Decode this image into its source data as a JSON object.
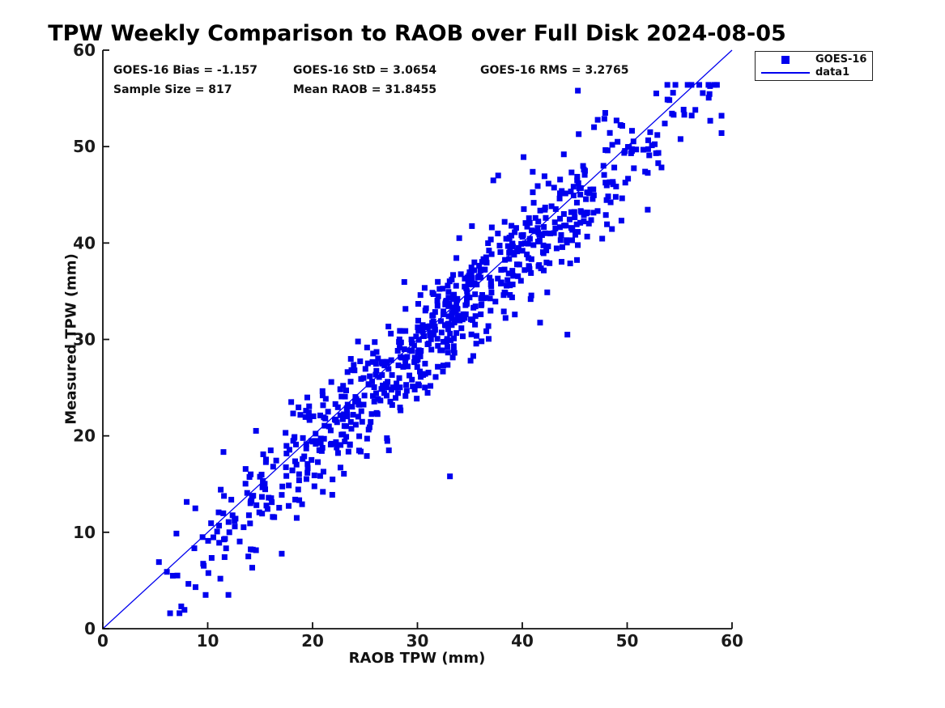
{
  "figure": {
    "background": "#ffffff",
    "accent_blue": "#0000ee",
    "axis_color": "#1a1a1a"
  },
  "chart_data": {
    "type": "scatter",
    "title": "TPW Weekly Comparison to RAOB over Full Disk 2024-08-05",
    "xlabel": "RAOB TPW (mm)",
    "ylabel": "Measured TPW (mm)",
    "xlim": [
      0,
      60
    ],
    "ylim": [
      0,
      60
    ],
    "xticks": [
      0,
      10,
      20,
      30,
      40,
      50,
      60
    ],
    "yticks": [
      0,
      10,
      20,
      30,
      40,
      50,
      60
    ],
    "grid": false,
    "legend": {
      "position": "outside-top-right",
      "entries": [
        "GOES-16",
        "data1"
      ]
    },
    "annotations": [
      {
        "text": "GOES-16 Bias = -1.157",
        "row": 0,
        "col": 0
      },
      {
        "text": "GOES-16 StD = 3.0654",
        "row": 0,
        "col": 1
      },
      {
        "text": "GOES-16 RMS = 3.2765",
        "row": 0,
        "col": 2
      },
      {
        "text": "Sample Size = 817",
        "row": 1,
        "col": 0
      },
      {
        "text": "Mean RAOB = 31.8455",
        "row": 1,
        "col": 1
      }
    ],
    "series": [
      {
        "name": "GOES-16",
        "type": "scatter",
        "marker": "square",
        "marker_size_px": 7,
        "color": "#0000ee",
        "n_points": 817,
        "distribution": {
          "note": "817 points, too dense to read individually; cloud regenerated from on-chart statistics: y = x + bias + N(0, residual_std), x triangular over x_range",
          "x_mean": 31.8455,
          "x_range": [
            4.6,
            59.4
          ],
          "bias": -1.157,
          "residual_std": 3.0654,
          "rms": 3.2765,
          "y_clamp": [
            1.6,
            56.4
          ],
          "seed": 20240805
        },
        "outlier_points": [
          [
            33.1,
            15.8
          ],
          [
            44.3,
            30.5
          ],
          [
            45.3,
            55.8
          ],
          [
            37.7,
            47.0
          ],
          [
            59.0,
            53.2
          ],
          [
            59.0,
            51.4
          ]
        ]
      },
      {
        "name": "data1",
        "type": "line",
        "color": "#0000ee",
        "line_width": 1.3,
        "points": [
          [
            0,
            0
          ],
          [
            60,
            60
          ]
        ]
      }
    ]
  }
}
